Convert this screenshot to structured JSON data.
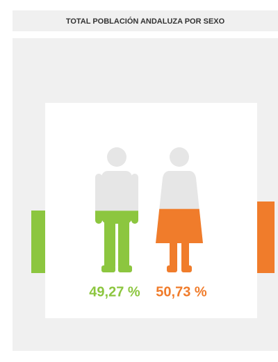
{
  "chart_data": {
    "type": "pictogram",
    "title": "TOTAL POBLACIÓN ANDALUZA POR SEXO",
    "ylim": [
      0,
      100
    ],
    "series": [
      {
        "color": "#8cc63f",
        "values": [
          49.27
        ],
        "value_labels": [
          "49,27 %"
        ]
      },
      {
        "color": "#f07c2b",
        "values": [
          50.73
        ],
        "value_labels": [
          "50,73 %"
        ]
      }
    ]
  }
}
